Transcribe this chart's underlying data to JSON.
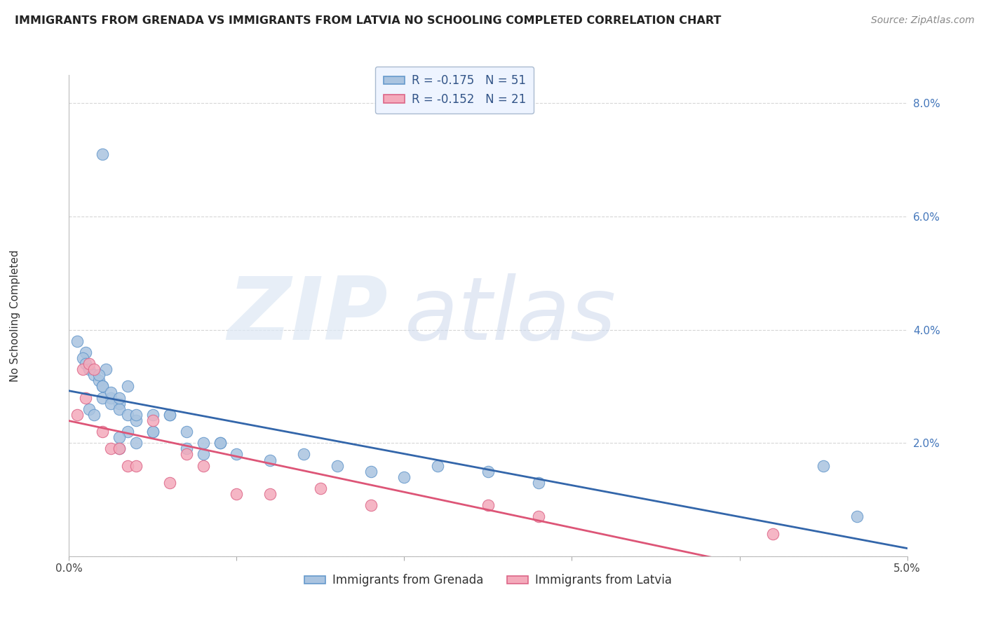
{
  "title": "IMMIGRANTS FROM GRENADA VS IMMIGRANTS FROM LATVIA NO SCHOOLING COMPLETED CORRELATION CHART",
  "source": "Source: ZipAtlas.com",
  "ylabel": "No Schooling Completed",
  "x_min": 0.0,
  "x_max": 0.05,
  "y_min": 0.0,
  "y_max": 0.085,
  "r_grenada": -0.175,
  "n_grenada": 51,
  "r_latvia": -0.152,
  "n_latvia": 21,
  "grenada_color": "#aac4e0",
  "latvia_color": "#f4aabb",
  "grenada_edge": "#6699cc",
  "latvia_edge": "#dd6688",
  "line_grenada_color": "#3366aa",
  "line_latvia_color": "#dd5577",
  "grenada_x": [
    0.002,
    0.0005,
    0.001,
    0.0008,
    0.001,
    0.0012,
    0.0015,
    0.0018,
    0.002,
    0.0022,
    0.0025,
    0.003,
    0.0012,
    0.0015,
    0.002,
    0.0025,
    0.003,
    0.0035,
    0.004,
    0.005,
    0.0018,
    0.002,
    0.0025,
    0.003,
    0.0035,
    0.004,
    0.005,
    0.006,
    0.007,
    0.008,
    0.009,
    0.0035,
    0.004,
    0.005,
    0.006,
    0.007,
    0.008,
    0.009,
    0.01,
    0.012,
    0.014,
    0.016,
    0.018,
    0.02,
    0.022,
    0.025,
    0.028,
    0.003,
    0.045,
    0.047,
    0.003
  ],
  "grenada_y": [
    0.071,
    0.038,
    0.036,
    0.035,
    0.034,
    0.033,
    0.032,
    0.031,
    0.03,
    0.033,
    0.028,
    0.027,
    0.026,
    0.025,
    0.028,
    0.027,
    0.026,
    0.025,
    0.024,
    0.025,
    0.032,
    0.03,
    0.029,
    0.028,
    0.03,
    0.025,
    0.022,
    0.025,
    0.022,
    0.02,
    0.02,
    0.022,
    0.02,
    0.022,
    0.025,
    0.019,
    0.018,
    0.02,
    0.018,
    0.017,
    0.018,
    0.016,
    0.015,
    0.014,
    0.016,
    0.015,
    0.013,
    0.019,
    0.016,
    0.007,
    0.021
  ],
  "latvia_x": [
    0.0005,
    0.001,
    0.0008,
    0.0012,
    0.0015,
    0.002,
    0.0025,
    0.003,
    0.0035,
    0.004,
    0.005,
    0.006,
    0.007,
    0.008,
    0.01,
    0.012,
    0.015,
    0.018,
    0.025,
    0.028,
    0.042
  ],
  "latvia_y": [
    0.025,
    0.028,
    0.033,
    0.034,
    0.033,
    0.022,
    0.019,
    0.019,
    0.016,
    0.016,
    0.024,
    0.013,
    0.018,
    0.016,
    0.011,
    0.011,
    0.012,
    0.009,
    0.009,
    0.007,
    0.004
  ]
}
